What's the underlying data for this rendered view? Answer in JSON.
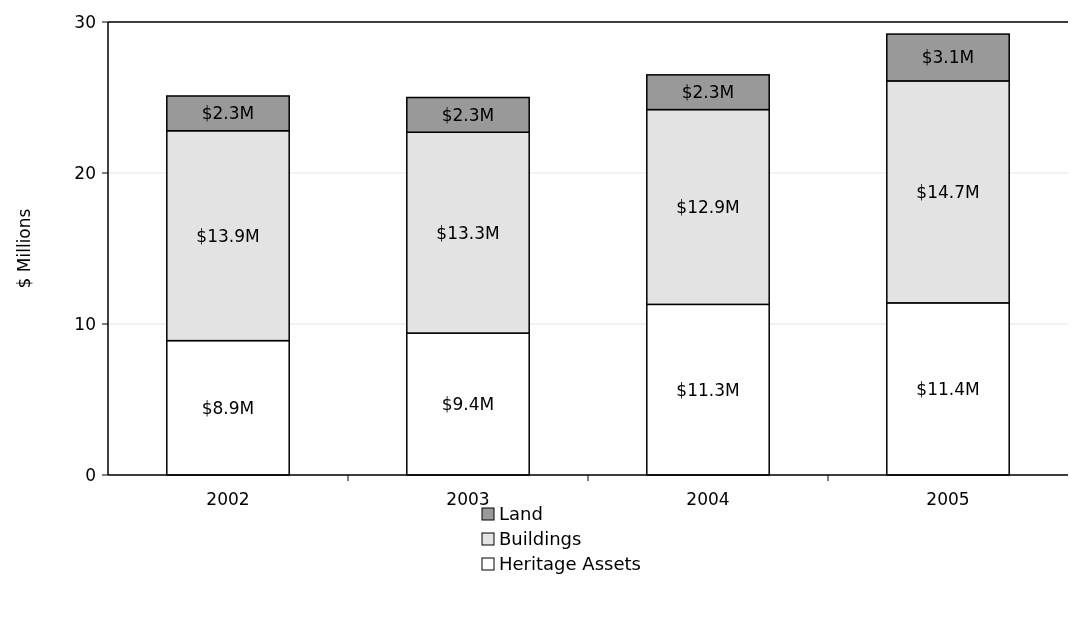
{
  "chart_data": {
    "type": "bar",
    "stacked": true,
    "ylabel": "$ Millions",
    "categories": [
      "2002",
      "2003",
      "2004",
      "2005"
    ],
    "series": [
      {
        "name": "Heritage Assets",
        "color": "#ffffff",
        "values": [
          8.9,
          9.4,
          11.3,
          11.4
        ],
        "value_labels": [
          "$8.9M",
          "$9.4M",
          "$11.3M",
          "$11.4M"
        ]
      },
      {
        "name": "Buildings",
        "color": "#e3e3e3",
        "values": [
          13.9,
          13.3,
          12.9,
          14.7
        ],
        "value_labels": [
          "$13.9M",
          "$13.3M",
          "$12.9M",
          "$14.7M"
        ]
      },
      {
        "name": "Land",
        "color": "#999999",
        "values": [
          2.3,
          2.3,
          2.3,
          3.1
        ],
        "value_labels": [
          "$2.3M",
          "$2.3M",
          "$2.3M",
          "$3.1M"
        ]
      }
    ],
    "ylim": [
      0,
      30
    ],
    "yticks": [
      0,
      10,
      20,
      30
    ],
    "grid": "y",
    "legend": "bottom"
  }
}
